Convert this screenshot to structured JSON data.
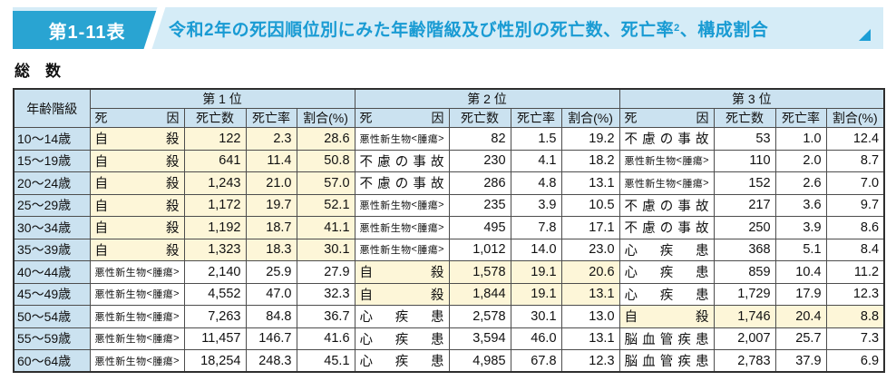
{
  "header": {
    "table_no": "第1-11表",
    "title_main": "令和2年の死因順位別にみた年齢階級及び性別の死亡数、死亡率",
    "title_sup": "2",
    "title_tail": "、構成割合",
    "accent_color": "#29a4d2",
    "banner_bg_color": "#d5ecf7",
    "title_text_color": "#199bd3"
  },
  "section_title": "総　数",
  "table": {
    "age_header": "年齢階級",
    "rank_headers": [
      "第 1 位",
      "第 2 位",
      "第 3 位"
    ],
    "sub_headers": {
      "cause": "死因",
      "deaths": "死亡数",
      "rate": "死亡率",
      "share": "割合(%)"
    },
    "highlight_color": "#fdf6d8",
    "header_bg_color": "#cbe2f0",
    "rows": [
      {
        "age": "10〜14歳",
        "ranks": [
          {
            "cause": "自殺",
            "deaths": "122",
            "rate": "2.3",
            "share": "28.6",
            "highlight": true
          },
          {
            "cause": "悪性新生物<腫瘍>",
            "deaths": "82",
            "rate": "1.5",
            "share": "19.2"
          },
          {
            "cause": "不慮の事故",
            "deaths": "53",
            "rate": "1.0",
            "share": "12.4"
          }
        ]
      },
      {
        "age": "15〜19歳",
        "ranks": [
          {
            "cause": "自殺",
            "deaths": "641",
            "rate": "11.4",
            "share": "50.8",
            "highlight": true
          },
          {
            "cause": "不慮の事故",
            "deaths": "230",
            "rate": "4.1",
            "share": "18.2"
          },
          {
            "cause": "悪性新生物<腫瘍>",
            "deaths": "110",
            "rate": "2.0",
            "share": "8.7"
          }
        ]
      },
      {
        "age": "20〜24歳",
        "ranks": [
          {
            "cause": "自殺",
            "deaths": "1,243",
            "rate": "21.0",
            "share": "57.0",
            "highlight": true
          },
          {
            "cause": "不慮の事故",
            "deaths": "286",
            "rate": "4.8",
            "share": "13.1"
          },
          {
            "cause": "悪性新生物<腫瘍>",
            "deaths": "152",
            "rate": "2.6",
            "share": "7.0"
          }
        ]
      },
      {
        "age": "25〜29歳",
        "ranks": [
          {
            "cause": "自殺",
            "deaths": "1,172",
            "rate": "19.7",
            "share": "52.1",
            "highlight": true
          },
          {
            "cause": "悪性新生物<腫瘍>",
            "deaths": "235",
            "rate": "3.9",
            "share": "10.5"
          },
          {
            "cause": "不慮の事故",
            "deaths": "217",
            "rate": "3.6",
            "share": "9.7"
          }
        ]
      },
      {
        "age": "30〜34歳",
        "ranks": [
          {
            "cause": "自殺",
            "deaths": "1,192",
            "rate": "18.7",
            "share": "41.1",
            "highlight": true
          },
          {
            "cause": "悪性新生物<腫瘍>",
            "deaths": "495",
            "rate": "7.8",
            "share": "17.1"
          },
          {
            "cause": "不慮の事故",
            "deaths": "250",
            "rate": "3.9",
            "share": "8.6"
          }
        ]
      },
      {
        "age": "35〜39歳",
        "ranks": [
          {
            "cause": "自殺",
            "deaths": "1,323",
            "rate": "18.3",
            "share": "30.1",
            "highlight": true
          },
          {
            "cause": "悪性新生物<腫瘍>",
            "deaths": "1,012",
            "rate": "14.0",
            "share": "23.0"
          },
          {
            "cause": "心疾患",
            "deaths": "368",
            "rate": "5.1",
            "share": "8.4"
          }
        ]
      },
      {
        "age": "40〜44歳",
        "ranks": [
          {
            "cause": "悪性新生物<腫瘍>",
            "deaths": "2,140",
            "rate": "25.9",
            "share": "27.9"
          },
          {
            "cause": "自殺",
            "deaths": "1,578",
            "rate": "19.1",
            "share": "20.6",
            "highlight": true
          },
          {
            "cause": "心疾患",
            "deaths": "859",
            "rate": "10.4",
            "share": "11.2"
          }
        ]
      },
      {
        "age": "45〜49歳",
        "ranks": [
          {
            "cause": "悪性新生物<腫瘍>",
            "deaths": "4,552",
            "rate": "47.0",
            "share": "32.3"
          },
          {
            "cause": "自殺",
            "deaths": "1,844",
            "rate": "19.1",
            "share": "13.1",
            "highlight": true
          },
          {
            "cause": "心疾患",
            "deaths": "1,729",
            "rate": "17.9",
            "share": "12.3"
          }
        ]
      },
      {
        "age": "50〜54歳",
        "ranks": [
          {
            "cause": "悪性新生物<腫瘍>",
            "deaths": "7,263",
            "rate": "84.8",
            "share": "36.7"
          },
          {
            "cause": "心疾患",
            "deaths": "2,578",
            "rate": "30.1",
            "share": "13.0"
          },
          {
            "cause": "自殺",
            "deaths": "1,746",
            "rate": "20.4",
            "share": "8.8",
            "highlight": true
          }
        ]
      },
      {
        "age": "55〜59歳",
        "ranks": [
          {
            "cause": "悪性新生物<腫瘍>",
            "deaths": "11,457",
            "rate": "146.7",
            "share": "41.6"
          },
          {
            "cause": "心疾患",
            "deaths": "3,594",
            "rate": "46.0",
            "share": "13.1"
          },
          {
            "cause": "脳血管疾患",
            "deaths": "2,007",
            "rate": "25.7",
            "share": "7.3"
          }
        ]
      },
      {
        "age": "60〜64歳",
        "ranks": [
          {
            "cause": "悪性新生物<腫瘍>",
            "deaths": "18,254",
            "rate": "248.3",
            "share": "45.1"
          },
          {
            "cause": "心疾患",
            "deaths": "4,985",
            "rate": "67.8",
            "share": "12.3"
          },
          {
            "cause": "脳血管疾患",
            "deaths": "2,783",
            "rate": "37.9",
            "share": "6.9"
          }
        ]
      }
    ]
  }
}
